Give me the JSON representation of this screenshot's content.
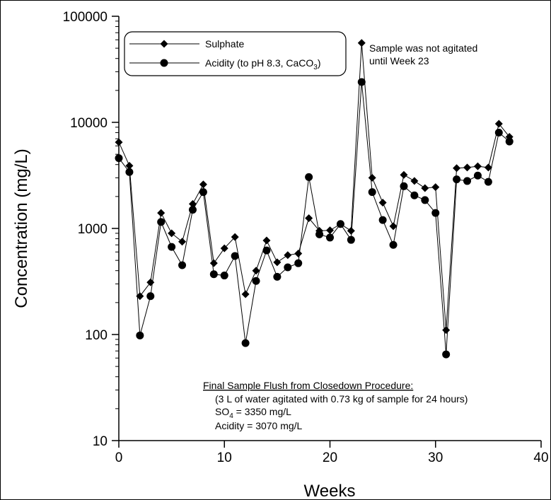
{
  "chart_data": {
    "type": "line",
    "xlabel": "Weeks",
    "ylabel": "Concentration (mg/L)",
    "xlim": [
      0,
      40
    ],
    "ylim": [
      10,
      100000
    ],
    "yscale": "log",
    "grid": false,
    "x_ticks": [
      "0",
      "10",
      "20",
      "30",
      "40"
    ],
    "y_ticks": [
      "10",
      "100",
      "1000",
      "10000",
      "100000"
    ],
    "legend_position": "top-left",
    "series": [
      {
        "name": "Sulphate",
        "marker": "diamond",
        "x": [
          0,
          1,
          2,
          3,
          4,
          5,
          6,
          7,
          8,
          9,
          10,
          11,
          12,
          13,
          14,
          15,
          16,
          17,
          18,
          19,
          20,
          21,
          22,
          23,
          24,
          25,
          26,
          27,
          28,
          29,
          30,
          31,
          32,
          33,
          34,
          35,
          36,
          37
        ],
        "values": [
          6500,
          3900,
          230,
          310,
          1400,
          900,
          750,
          1700,
          2600,
          470,
          650,
          830,
          240,
          400,
          770,
          480,
          560,
          580,
          1250,
          950,
          960,
          1100,
          950,
          56000,
          3000,
          1750,
          1050,
          3200,
          2800,
          2400,
          2450,
          110,
          3700,
          3750,
          3850,
          3750,
          9700,
          7300
        ]
      },
      {
        "name": "Acidity (to pH 8.3, CaCO",
        "name_sub": "3",
        "name_end": ")",
        "marker": "circle",
        "x": [
          0,
          1,
          2,
          3,
          4,
          5,
          6,
          7,
          8,
          9,
          10,
          11,
          12,
          13,
          14,
          15,
          16,
          17,
          18,
          19,
          20,
          21,
          22,
          23,
          24,
          25,
          26,
          27,
          28,
          29,
          30,
          31,
          32,
          33,
          34,
          35,
          36,
          37
        ],
        "values": [
          4600,
          3400,
          98,
          230,
          1150,
          670,
          450,
          1500,
          2200,
          370,
          360,
          550,
          83,
          320,
          620,
          350,
          430,
          470,
          3050,
          880,
          820,
          1100,
          780,
          24000,
          2200,
          1200,
          700,
          2500,
          2050,
          1850,
          1400,
          65,
          2900,
          2800,
          3150,
          2750,
          8000,
          6600
        ]
      }
    ],
    "annotations": {
      "peak_note_line1": "Sample was not agitated",
      "peak_note_line2": "until Week 23",
      "final_title": "Final Sample Flush from Closedown Procedure:",
      "final_line1": "(3 L of water agitated with 0.73 kg of sample for 24 hours)",
      "final_so4_prefix": "SO",
      "final_so4_sub": "4",
      "final_so4_rest": " = 3350 mg/L",
      "final_acidity": "Acidity = 3070 mg/L"
    }
  }
}
